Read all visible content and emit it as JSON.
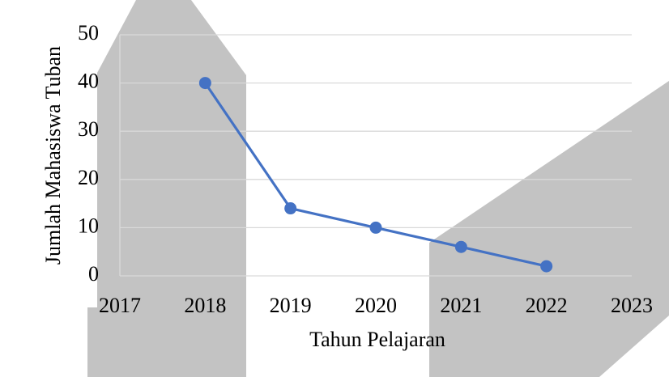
{
  "chart_data": {
    "type": "line",
    "x_label": "Tahun Pelajaran",
    "y_label": "Jumlah Mahasiswa Tuban",
    "x": [
      2018,
      2019,
      2020,
      2021,
      2022
    ],
    "series": [
      {
        "name": "Jumlah Mahasiswa Tuban",
        "color": "#4472c4",
        "values": [
          40,
          14,
          10,
          6,
          2
        ]
      }
    ],
    "xlim": [
      2017,
      2023
    ],
    "xticks": [
      2017,
      2018,
      2019,
      2020,
      2021,
      2022,
      2023
    ],
    "ylim": [
      0,
      50
    ],
    "yticks": [
      0,
      10,
      20,
      30,
      40,
      50
    ],
    "grid": true
  }
}
